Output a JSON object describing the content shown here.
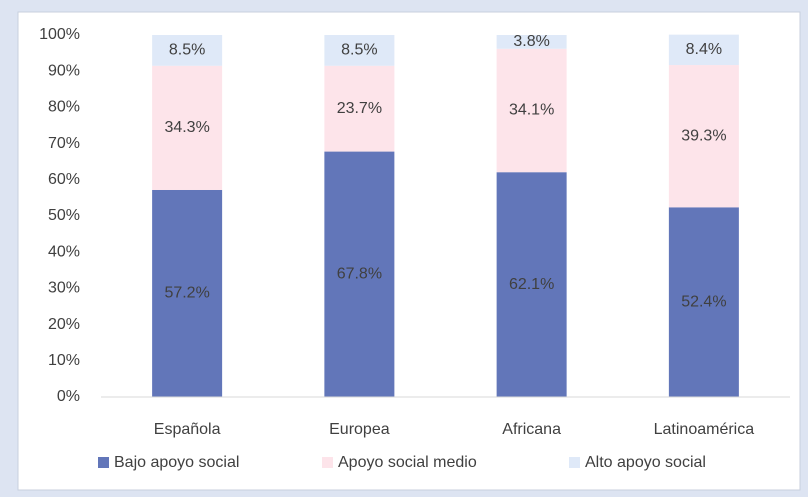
{
  "chart_data": {
    "type": "stacked_bar",
    "categories": [
      "Española",
      "Europea",
      "Africana",
      "Latinoamérica"
    ],
    "series": [
      {
        "name": "Bajo apoyo social",
        "color": "#6276b9",
        "values": [
          57.2,
          67.8,
          62.1,
          52.4
        ],
        "value_labels": [
          "57.2%",
          "67.8%",
          "62.1%",
          "52.4%"
        ]
      },
      {
        "name": "Apoyo social medio",
        "color": "#fde4ea",
        "values": [
          34.3,
          23.7,
          34.1,
          39.3
        ],
        "value_labels": [
          "34.3%",
          "23.7%",
          "34.1%",
          "39.3%"
        ]
      },
      {
        "name": "Alto apoyo social",
        "color": "#dfe9f8",
        "values": [
          8.5,
          8.5,
          3.8,
          8.4
        ],
        "value_labels": [
          "8.5%",
          "8.5%",
          "3.8%",
          "8.4%"
        ]
      }
    ],
    "ylim": [
      0,
      100
    ],
    "yticks": [
      {
        "value": 0,
        "label": "0%"
      },
      {
        "value": 10,
        "label": "10%"
      },
      {
        "value": 20,
        "label": "20%"
      },
      {
        "value": 30,
        "label": "30%"
      },
      {
        "value": 40,
        "label": "40%"
      },
      {
        "value": 50,
        "label": "50%"
      },
      {
        "value": 60,
        "label": "60%"
      },
      {
        "value": 70,
        "label": "70%"
      },
      {
        "value": 80,
        "label": "80%"
      },
      {
        "value": 90,
        "label": "90%"
      },
      {
        "value": 100,
        "label": "100%"
      }
    ],
    "legend": "bottom"
  }
}
